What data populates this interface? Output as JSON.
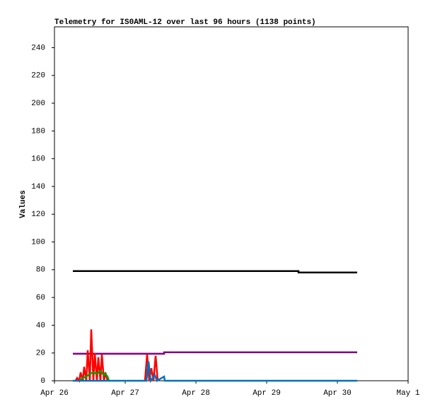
{
  "chart_data": {
    "type": "line",
    "title": "Telemetry for IS0AML-12 over last 96 hours (1138 points)",
    "y_label": "Values",
    "xlim": [
      0,
      5
    ],
    "xticks": [
      {
        "value": 0,
        "label": "Apr 26"
      },
      {
        "value": 1,
        "label": "Apr 27"
      },
      {
        "value": 2,
        "label": "Apr 28"
      },
      {
        "value": 3,
        "label": "Apr 29"
      },
      {
        "value": 4,
        "label": "Apr 30"
      },
      {
        "value": 5,
        "label": "May 1"
      }
    ],
    "ylim": [
      0,
      255
    ],
    "yticks": [
      0,
      20,
      40,
      60,
      80,
      100,
      120,
      140,
      160,
      180,
      200,
      220,
      240
    ],
    "grid": false,
    "series": [
      {
        "color": "#000000",
        "x": [
          0.26,
          3.45,
          3.45,
          4.28
        ],
        "values": [
          79,
          79,
          78,
          78
        ]
      },
      {
        "color": "#800080",
        "x": [
          0.26,
          1.55,
          1.55,
          4.28
        ],
        "values": [
          19.5,
          19.5,
          20.5,
          20.5
        ]
      },
      {
        "color": "#ff0000",
        "x": [
          0.3,
          0.32,
          0.35,
          0.37,
          0.4,
          0.42,
          0.45,
          0.47,
          0.5,
          0.52,
          0.55,
          0.57,
          0.6,
          0.62,
          0.65,
          0.67,
          0.7,
          0.72,
          0.75,
          1.0,
          1.28,
          1.31,
          1.34,
          1.37,
          1.4,
          1.43,
          1.46
        ],
        "values": [
          0,
          2,
          0,
          6,
          0,
          10,
          0,
          22,
          0,
          37,
          0,
          20,
          0,
          17,
          0,
          19,
          0,
          6,
          0,
          null,
          0,
          19,
          0,
          9,
          0,
          18,
          0
        ]
      },
      {
        "color": "#00a000",
        "x": [
          0.35,
          0.4,
          0.45,
          0.5,
          0.55,
          0.6,
          0.65,
          0.7,
          0.72,
          0.75,
          0.77
        ],
        "values": [
          0,
          2,
          3,
          5,
          6,
          5,
          7,
          4,
          5,
          3,
          0
        ]
      },
      {
        "color": "#0070c0",
        "x": [
          0.26,
          1.3,
          1.33,
          1.36,
          1.42,
          1.45,
          1.55,
          1.56,
          4.28
        ],
        "values": [
          0,
          0,
          14,
          0,
          4,
          0,
          3,
          0,
          0
        ]
      }
    ]
  }
}
